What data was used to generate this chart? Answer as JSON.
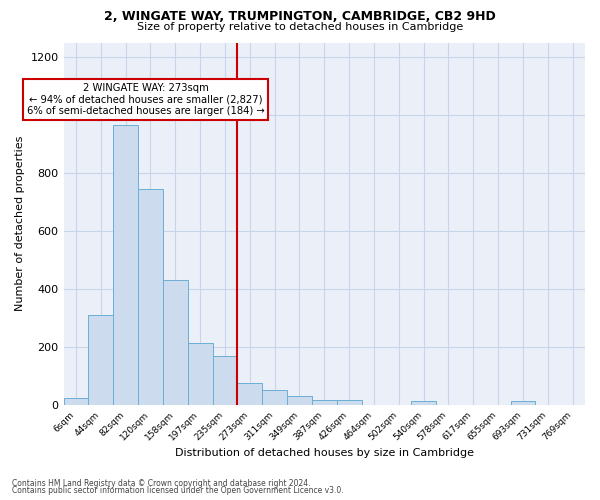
{
  "title1": "2, WINGATE WAY, TRUMPINGTON, CAMBRIDGE, CB2 9HD",
  "title2": "Size of property relative to detached houses in Cambridge",
  "xlabel": "Distribution of detached houses by size in Cambridge",
  "ylabel": "Number of detached properties",
  "bin_labels": [
    "6sqm",
    "44sqm",
    "82sqm",
    "120sqm",
    "158sqm",
    "197sqm",
    "235sqm",
    "273sqm",
    "311sqm",
    "349sqm",
    "387sqm",
    "426sqm",
    "464sqm",
    "502sqm",
    "540sqm",
    "578sqm",
    "617sqm",
    "655sqm",
    "693sqm",
    "731sqm",
    "769sqm"
  ],
  "bar_heights": [
    25,
    310,
    965,
    745,
    430,
    215,
    170,
    75,
    50,
    30,
    18,
    18,
    0,
    0,
    13,
    0,
    0,
    0,
    13,
    0,
    0
  ],
  "bar_color": "#ccdcee",
  "bar_edge_color": "#6baed6",
  "vline_color": "#cc0000",
  "annotation_text": "2 WINGATE WAY: 273sqm\n← 94% of detached houses are smaller (2,827)\n6% of semi-detached houses are larger (184) →",
  "annotation_box_color": "#ffffff",
  "annotation_box_edge_color": "#cc0000",
  "grid_color": "#c8d4e8",
  "background_color": "#eaeff8",
  "footnote1": "Contains HM Land Registry data © Crown copyright and database right 2024.",
  "footnote2": "Contains public sector information licensed under the Open Government Licence v3.0.",
  "ylim": [
    0,
    1250
  ],
  "yticks": [
    0,
    200,
    400,
    600,
    800,
    1000,
    1200
  ]
}
